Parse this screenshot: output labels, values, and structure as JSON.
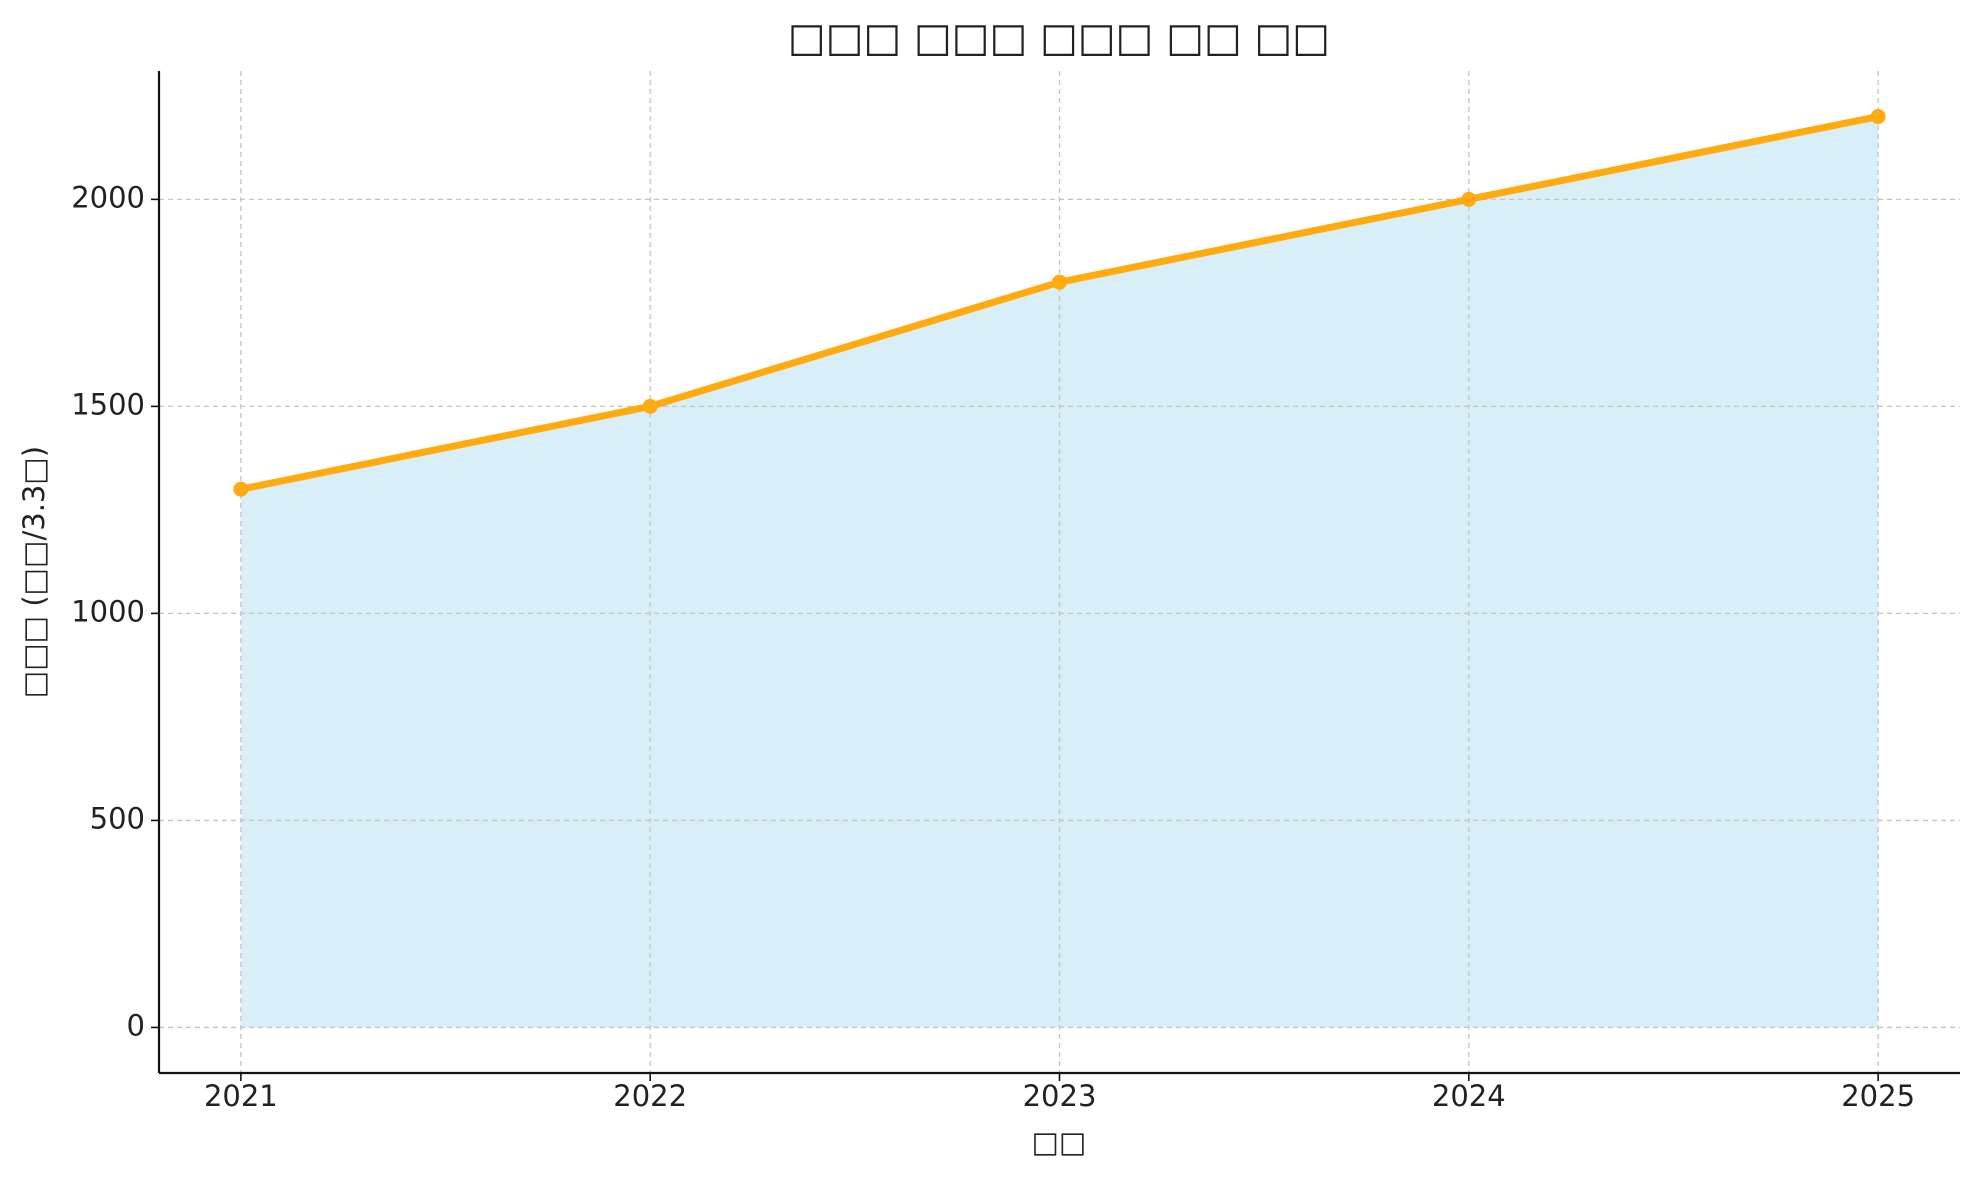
{
  "chart_data": {
    "type": "line",
    "title": "□□□ □□□ □□□ □□ □□",
    "x_label": "□□",
    "y_label": "□□□ (□□/3.3□)",
    "x": [
      2021,
      2022,
      2023,
      2024,
      2025
    ],
    "series": [
      {
        "name": "□□□",
        "color": "#ffab0f",
        "fill_color": "#d9eff7",
        "values": [
          1300,
          1500,
          1800,
          2000,
          2200
        ]
      }
    ],
    "xlim": [
      2020.8,
      2025.2
    ],
    "xticks": [
      2021,
      2022,
      2023,
      2024,
      2025
    ],
    "ylim": [
      -110,
      2310
    ],
    "yticks": [
      0,
      500,
      1000,
      1500,
      2000
    ],
    "grid": true
  }
}
